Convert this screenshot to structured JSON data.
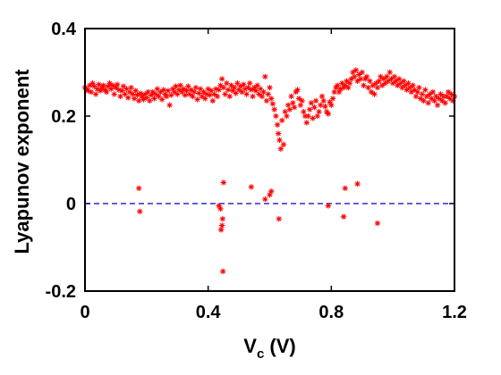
{
  "chart_data": {
    "type": "scatter",
    "title": "",
    "xlabel_main": "V",
    "xlabel_sub": "c",
    "xlabel_unit": " (V)",
    "ylabel": "Lyapunov exponent",
    "xlim": [
      0,
      1.2
    ],
    "ylim": [
      -0.2,
      0.4
    ],
    "xticks": [
      0,
      0.4,
      0.8,
      1.2
    ],
    "xtick_labels": [
      "0",
      "0.4",
      "0.8",
      "1.2"
    ],
    "yticks": [
      -0.2,
      0,
      0.2,
      0.4
    ],
    "ytick_labels": [
      "-0.2",
      "0",
      "0.2",
      "0.4"
    ],
    "grid": false,
    "marker": "asterisk",
    "marker_color": "#ff0000",
    "reference_line": {
      "y": 0,
      "style": "dashed",
      "color": "#0000cc"
    },
    "series": [
      {
        "points": [
          [
            0.0,
            0.265
          ],
          [
            0.005,
            0.262
          ],
          [
            0.01,
            0.258
          ],
          [
            0.015,
            0.27
          ],
          [
            0.02,
            0.255
          ],
          [
            0.025,
            0.275
          ],
          [
            0.03,
            0.268
          ],
          [
            0.035,
            0.25
          ],
          [
            0.04,
            0.262
          ],
          [
            0.045,
            0.272
          ],
          [
            0.05,
            0.258
          ],
          [
            0.055,
            0.265
          ],
          [
            0.06,
            0.27
          ],
          [
            0.065,
            0.26
          ],
          [
            0.07,
            0.255
          ],
          [
            0.075,
            0.268
          ],
          [
            0.08,
            0.275
          ],
          [
            0.085,
            0.262
          ],
          [
            0.09,
            0.27
          ],
          [
            0.095,
            0.25
          ],
          [
            0.1,
            0.265
          ],
          [
            0.105,
            0.272
          ],
          [
            0.11,
            0.26
          ],
          [
            0.115,
            0.245
          ],
          [
            0.12,
            0.258
          ],
          [
            0.125,
            0.268
          ],
          [
            0.13,
            0.25
          ],
          [
            0.135,
            0.262
          ],
          [
            0.14,
            0.242
          ],
          [
            0.145,
            0.255
          ],
          [
            0.15,
            0.265
          ],
          [
            0.155,
            0.25
          ],
          [
            0.16,
            0.24
          ],
          [
            0.165,
            0.258
          ],
          [
            0.17,
            0.248
          ],
          [
            0.175,
            0.235
          ],
          [
            0.18,
            0.252
          ],
          [
            0.185,
            0.245
          ],
          [
            0.19,
            0.238
          ],
          [
            0.195,
            0.25
          ],
          [
            0.2,
            0.242
          ],
          [
            0.205,
            0.255
          ],
          [
            0.21,
            0.235
          ],
          [
            0.215,
            0.248
          ],
          [
            0.22,
            0.255
          ],
          [
            0.225,
            0.24
          ],
          [
            0.23,
            0.25
          ],
          [
            0.235,
            0.262
          ],
          [
            0.24,
            0.245
          ],
          [
            0.245,
            0.255
          ],
          [
            0.25,
            0.238
          ],
          [
            0.255,
            0.26
          ],
          [
            0.26,
            0.25
          ],
          [
            0.265,
            0.245
          ],
          [
            0.27,
            0.258
          ],
          [
            0.275,
            0.225
          ],
          [
            0.28,
            0.248
          ],
          [
            0.285,
            0.262
          ],
          [
            0.29,
            0.255
          ],
          [
            0.295,
            0.268
          ],
          [
            0.3,
            0.25
          ],
          [
            0.305,
            0.26
          ],
          [
            0.31,
            0.27
          ],
          [
            0.315,
            0.255
          ],
          [
            0.32,
            0.262
          ],
          [
            0.325,
            0.248
          ],
          [
            0.33,
            0.258
          ],
          [
            0.335,
            0.268
          ],
          [
            0.34,
            0.25
          ],
          [
            0.345,
            0.26
          ],
          [
            0.35,
            0.245
          ],
          [
            0.355,
            0.255
          ],
          [
            0.36,
            0.265
          ],
          [
            0.365,
            0.238
          ],
          [
            0.37,
            0.252
          ],
          [
            0.375,
            0.262
          ],
          [
            0.38,
            0.245
          ],
          [
            0.385,
            0.255
          ],
          [
            0.39,
            0.24
          ],
          [
            0.395,
            0.25
          ],
          [
            0.4,
            0.262
          ],
          [
            0.405,
            0.248
          ],
          [
            0.41,
            0.258
          ],
          [
            0.415,
            0.235
          ],
          [
            0.42,
            0.25
          ],
          [
            0.425,
            0.262
          ],
          [
            0.43,
            0.245
          ],
          [
            0.435,
            0.26
          ],
          [
            0.44,
            0.27
          ],
          [
            0.445,
            0.285
          ],
          [
            0.45,
            0.265
          ],
          [
            0.455,
            0.25
          ],
          [
            0.46,
            0.275
          ],
          [
            0.465,
            0.26
          ],
          [
            0.47,
            0.245
          ],
          [
            0.475,
            0.27
          ],
          [
            0.48,
            0.258
          ],
          [
            0.485,
            0.265
          ],
          [
            0.49,
            0.252
          ],
          [
            0.495,
            0.275
          ],
          [
            0.5,
            0.26
          ],
          [
            0.505,
            0.268
          ],
          [
            0.51,
            0.255
          ],
          [
            0.515,
            0.272
          ],
          [
            0.52,
            0.262
          ],
          [
            0.525,
            0.25
          ],
          [
            0.53,
            0.265
          ],
          [
            0.535,
            0.275
          ],
          [
            0.54,
            0.26
          ],
          [
            0.545,
            0.245
          ],
          [
            0.55,
            0.265
          ],
          [
            0.555,
            0.258
          ],
          [
            0.56,
            0.27
          ],
          [
            0.565,
            0.25
          ],
          [
            0.57,
            0.262
          ],
          [
            0.575,
            0.245
          ],
          [
            0.58,
            0.255
          ],
          [
            0.585,
            0.29
          ],
          [
            0.59,
            0.235
          ],
          [
            0.595,
            0.25
          ],
          [
            0.6,
            0.265
          ],
          [
            0.605,
            0.24
          ],
          [
            0.61,
            0.228
          ],
          [
            0.615,
            0.215
          ],
          [
            0.62,
            0.2
          ],
          [
            0.625,
            0.18
          ],
          [
            0.628,
            0.16
          ],
          [
            0.632,
            0.145
          ],
          [
            0.636,
            0.125
          ],
          [
            0.64,
            0.19
          ],
          [
            0.645,
            0.135
          ],
          [
            0.65,
            0.21
          ],
          [
            0.655,
            0.2
          ],
          [
            0.66,
            0.225
          ],
          [
            0.665,
            0.215
          ],
          [
            0.67,
            0.245
          ],
          [
            0.675,
            0.23
          ],
          [
            0.68,
            0.22
          ],
          [
            0.685,
            0.255
          ],
          [
            0.69,
            0.26
          ],
          [
            0.695,
            0.24
          ],
          [
            0.7,
            0.225
          ],
          [
            0.705,
            0.235
          ],
          [
            0.71,
            0.21
          ],
          [
            0.715,
            0.2
          ],
          [
            0.72,
            0.185
          ],
          [
            0.725,
            0.2
          ],
          [
            0.73,
            0.215
          ],
          [
            0.735,
            0.23
          ],
          [
            0.74,
            0.195
          ],
          [
            0.745,
            0.22
          ],
          [
            0.75,
            0.235
          ],
          [
            0.755,
            0.2
          ],
          [
            0.76,
            0.21
          ],
          [
            0.765,
            0.225
          ],
          [
            0.77,
            0.245
          ],
          [
            0.775,
            0.235
          ],
          [
            0.78,
            0.222
          ],
          [
            0.785,
            0.21
          ],
          [
            0.79,
            0.205
          ],
          [
            0.795,
            0.232
          ],
          [
            0.8,
            0.225
          ],
          [
            0.805,
            0.24
          ],
          [
            0.81,
            0.255
          ],
          [
            0.815,
            0.265
          ],
          [
            0.82,
            0.27
          ],
          [
            0.825,
            0.255
          ],
          [
            0.83,
            0.262
          ],
          [
            0.835,
            0.275
          ],
          [
            0.84,
            0.265
          ],
          [
            0.845,
            0.27
          ],
          [
            0.85,
            0.28
          ],
          [
            0.855,
            0.265
          ],
          [
            0.86,
            0.275
          ],
          [
            0.865,
            0.285
          ],
          [
            0.87,
            0.3
          ],
          [
            0.875,
            0.29
          ],
          [
            0.88,
            0.305
          ],
          [
            0.885,
            0.28
          ],
          [
            0.89,
            0.295
          ],
          [
            0.895,
            0.285
          ],
          [
            0.9,
            0.3
          ],
          [
            0.905,
            0.27
          ],
          [
            0.91,
            0.285
          ],
          [
            0.915,
            0.29
          ],
          [
            0.92,
            0.265
          ],
          [
            0.925,
            0.28
          ],
          [
            0.93,
            0.255
          ],
          [
            0.935,
            0.27
          ],
          [
            0.94,
            0.25
          ],
          [
            0.945,
            0.275
          ],
          [
            0.95,
            0.265
          ],
          [
            0.955,
            0.28
          ],
          [
            0.96,
            0.29
          ],
          [
            0.965,
            0.27
          ],
          [
            0.97,
            0.285
          ],
          [
            0.975,
            0.275
          ],
          [
            0.98,
            0.29
          ],
          [
            0.985,
            0.28
          ],
          [
            0.99,
            0.3
          ],
          [
            0.995,
            0.285
          ],
          [
            1.0,
            0.275
          ],
          [
            1.005,
            0.29
          ],
          [
            1.01,
            0.28
          ],
          [
            1.015,
            0.27
          ],
          [
            1.02,
            0.285
          ],
          [
            1.025,
            0.275
          ],
          [
            1.03,
            0.265
          ],
          [
            1.035,
            0.28
          ],
          [
            1.04,
            0.27
          ],
          [
            1.045,
            0.26
          ],
          [
            1.05,
            0.275
          ],
          [
            1.055,
            0.265
          ],
          [
            1.06,
            0.255
          ],
          [
            1.065,
            0.27
          ],
          [
            1.07,
            0.26
          ],
          [
            1.075,
            0.245
          ],
          [
            1.08,
            0.255
          ],
          [
            1.085,
            0.265
          ],
          [
            1.09,
            0.24
          ],
          [
            1.095,
            0.25
          ],
          [
            1.1,
            0.235
          ],
          [
            1.105,
            0.26
          ],
          [
            1.11,
            0.245
          ],
          [
            1.115,
            0.23
          ],
          [
            1.12,
            0.25
          ],
          [
            1.125,
            0.24
          ],
          [
            1.13,
            0.255
          ],
          [
            1.135,
            0.235
          ],
          [
            1.14,
            0.245
          ],
          [
            1.145,
            0.225
          ],
          [
            1.15,
            0.24
          ],
          [
            1.155,
            0.25
          ],
          [
            1.16,
            0.235
          ],
          [
            1.165,
            0.245
          ],
          [
            1.17,
            0.23
          ],
          [
            1.175,
            0.245
          ],
          [
            1.18,
            0.255
          ],
          [
            1.185,
            0.24
          ],
          [
            1.19,
            0.25
          ],
          [
            1.195,
            0.235
          ],
          [
            1.2,
            0.245
          ],
          [
            0.175,
            0.035
          ],
          [
            0.178,
            -0.018
          ],
          [
            0.435,
            -0.005
          ],
          [
            0.44,
            -0.012
          ],
          [
            0.442,
            -0.06
          ],
          [
            0.445,
            -0.05
          ],
          [
            0.447,
            -0.035
          ],
          [
            0.448,
            -0.155
          ],
          [
            0.45,
            0.048
          ],
          [
            0.54,
            0.038
          ],
          [
            0.585,
            0.01
          ],
          [
            0.6,
            0.02
          ],
          [
            0.605,
            0.028
          ],
          [
            0.63,
            -0.035
          ],
          [
            0.79,
            -0.005
          ],
          [
            0.84,
            -0.03
          ],
          [
            0.845,
            0.035
          ],
          [
            0.885,
            0.045
          ],
          [
            0.95,
            -0.045
          ]
        ]
      }
    ]
  }
}
